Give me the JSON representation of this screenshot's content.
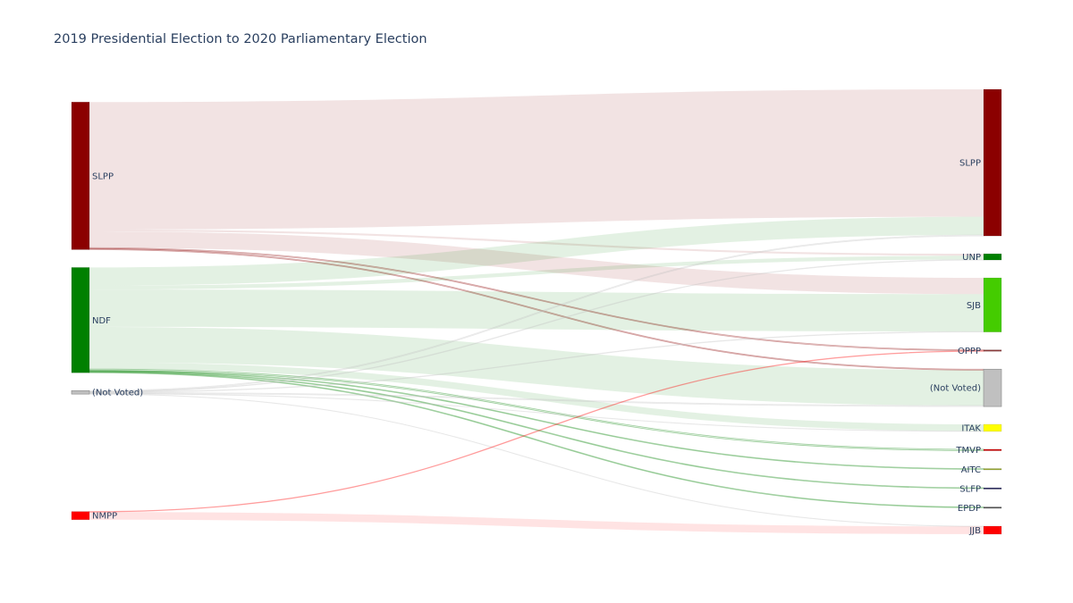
{
  "chart_data": {
    "type": "sankey",
    "title": "2019 Presidential Election to 2020 Parliamentary Election",
    "sources": [
      {
        "id": "SLPP19",
        "label": "SLPP",
        "color": "#8b0000"
      },
      {
        "id": "NDF",
        "label": "NDF",
        "color": "#008000"
      },
      {
        "id": "NV19",
        "label": "(Not Voted)",
        "color": "#c0c0c0"
      },
      {
        "id": "NMPP",
        "label": "NMPP",
        "color": "#ff0000"
      }
    ],
    "targets": [
      {
        "id": "SLPP20",
        "label": "SLPP",
        "color": "#8b0000"
      },
      {
        "id": "UNP",
        "label": "UNP",
        "color": "#008000"
      },
      {
        "id": "SJB",
        "label": "SJB",
        "color": "#44cc00"
      },
      {
        "id": "OPPP",
        "label": "OPPP",
        "color": "#8b3a3a"
      },
      {
        "id": "NV20",
        "label": "(Not Voted)",
        "color": "#c0c0c0"
      },
      {
        "id": "ITAK",
        "label": "ITAK",
        "color": "#ffff00"
      },
      {
        "id": "TMVP",
        "label": "TMVP",
        "color": "#cc0000"
      },
      {
        "id": "AITC",
        "label": "AITC",
        "color": "#99aa33"
      },
      {
        "id": "SLFP",
        "label": "SLFP",
        "color": "#2a2a5f"
      },
      {
        "id": "EPDP",
        "label": "EPDP",
        "color": "#555555"
      },
      {
        "id": "JJB",
        "label": "JJB",
        "color": "#ff0000"
      }
    ],
    "links": [
      {
        "source": "SLPP19",
        "target": "SLPP20",
        "value": 133
      },
      {
        "source": "SLPP19",
        "target": "UNP",
        "value": 2
      },
      {
        "source": "SLPP19",
        "target": "SJB",
        "value": 17
      },
      {
        "source": "SLPP19",
        "target": "OPPP",
        "value": 1
      },
      {
        "source": "SLPP19",
        "target": "NV20",
        "value": 1
      },
      {
        "source": "NDF",
        "target": "SLPP20",
        "value": 19
      },
      {
        "source": "NDF",
        "target": "UNP",
        "value": 4
      },
      {
        "source": "NDF",
        "target": "SJB",
        "value": 39
      },
      {
        "source": "NDF",
        "target": "NV20",
        "value": 37
      },
      {
        "source": "NDF",
        "target": "ITAK",
        "value": 7
      },
      {
        "source": "NDF",
        "target": "TMVP",
        "value": 1.5
      },
      {
        "source": "NDF",
        "target": "AITC",
        "value": 0.8
      },
      {
        "source": "NDF",
        "target": "SLFP",
        "value": 0.8
      },
      {
        "source": "NDF",
        "target": "EPDP",
        "value": 0.8
      },
      {
        "source": "NV19",
        "target": "SLPP20",
        "value": 1
      },
      {
        "source": "NV19",
        "target": "UNP",
        "value": 0.5
      },
      {
        "source": "NV19",
        "target": "SJB",
        "value": 0.5
      },
      {
        "source": "NV19",
        "target": "NV20",
        "value": 1
      },
      {
        "source": "NV19",
        "target": "ITAK",
        "value": 0.3
      },
      {
        "source": "NV19",
        "target": "JJB",
        "value": 0.3
      },
      {
        "source": "NMPP",
        "target": "OPPP",
        "value": 0.5
      },
      {
        "source": "NMPP",
        "target": "JJB",
        "value": 8
      }
    ]
  }
}
